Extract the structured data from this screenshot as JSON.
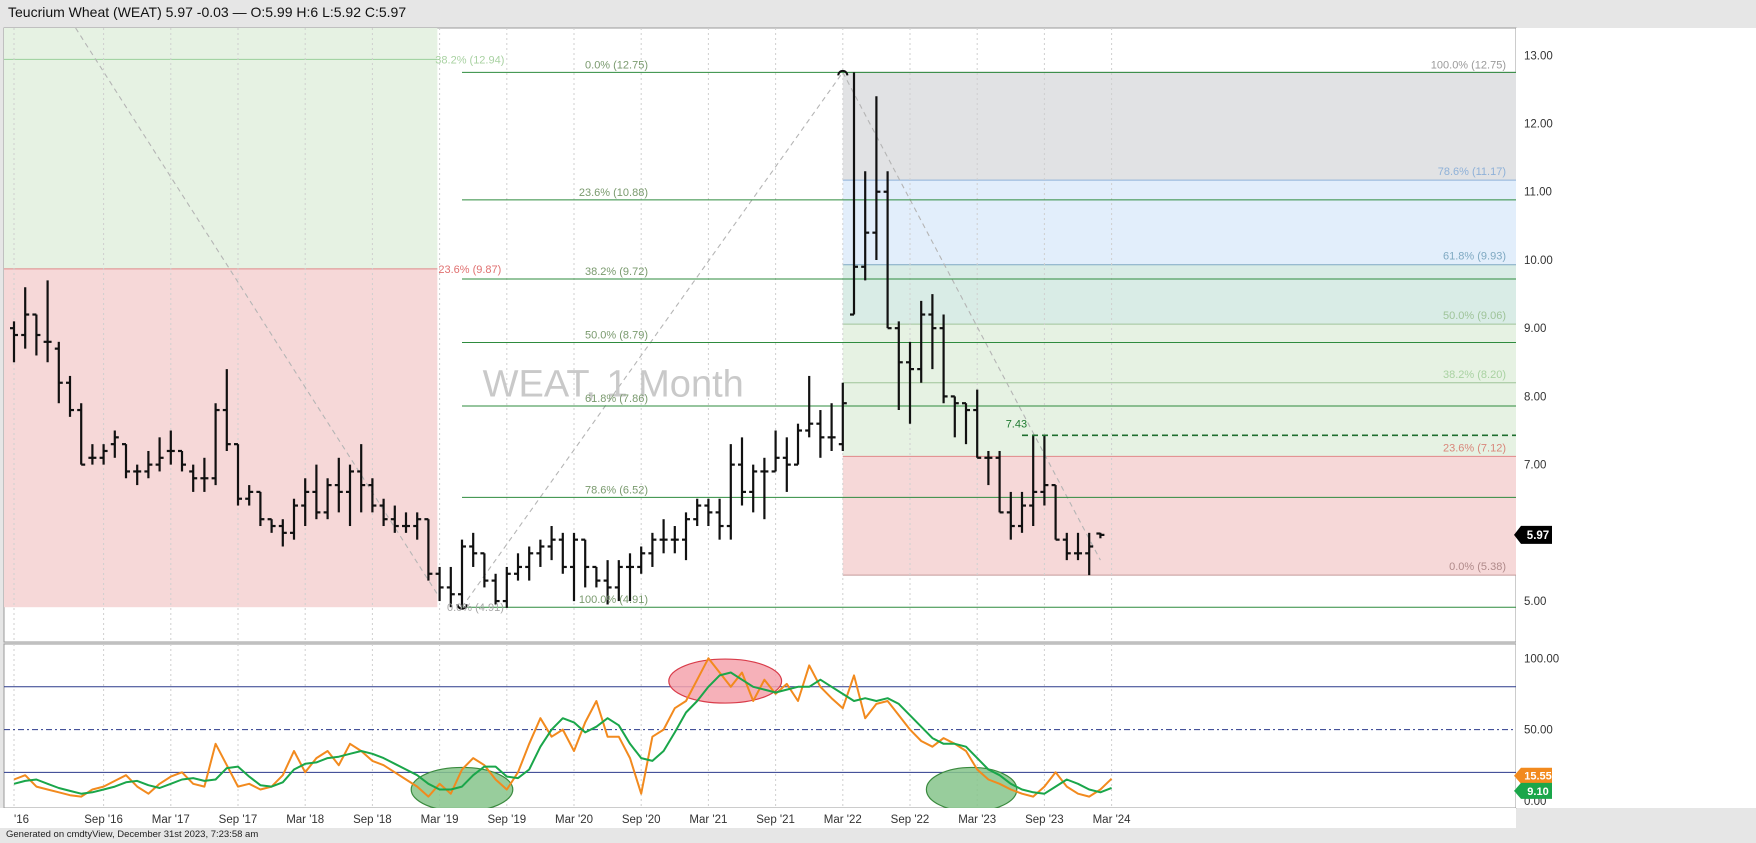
{
  "title": "Teucrium Wheat (WEAT) 5.97 -0.03 — O:5.99 H:6 L:5.92 C:5.97",
  "footer": "Generated on cmdtyView, December 31st 2023, 7:23:58 am",
  "watermark": "WEAT, 1 Month",
  "colors": {
    "bar": "#111111",
    "fib_line": "#2e8b3e",
    "osc_fast": "#f28a1e",
    "osc_slow": "#1aa64a",
    "zone_green": "#e6f2e3",
    "zone_red": "#f6d8d8",
    "zone_gray": "#e1e2e4",
    "zone_blue": "#e2eefb"
  },
  "chart_data": [
    {
      "type": "ohlc-bar",
      "interval": "1 Month",
      "symbol": "WEAT",
      "y_axis": {
        "ylim": [
          4.4,
          13.4
        ],
        "ticks": [
          {
            "v": 13,
            "label": "13.00"
          },
          {
            "v": 12,
            "label": "12.00"
          },
          {
            "v": 11,
            "label": "11.00"
          },
          {
            "v": 10,
            "label": "10.00"
          },
          {
            "v": 9,
            "label": "9.00"
          },
          {
            "v": 8,
            "label": "8.00"
          },
          {
            "v": 7,
            "label": "7.00"
          },
          {
            "v": 6,
            "label": "6.00"
          },
          {
            "v": 5,
            "label": "5.00"
          }
        ]
      },
      "x_axis": {
        "ticks": [
          {
            "i": 0,
            "label": "'16"
          },
          {
            "i": 8,
            "label": "Sep '16"
          },
          {
            "i": 14,
            "label": "Mar '17"
          },
          {
            "i": 20,
            "label": "Sep '17"
          },
          {
            "i": 26,
            "label": "Mar '18"
          },
          {
            "i": 32,
            "label": "Sep '18"
          },
          {
            "i": 38,
            "label": "Mar '19"
          },
          {
            "i": 44,
            "label": "Sep '19"
          },
          {
            "i": 50,
            "label": "Mar '20"
          },
          {
            "i": 56,
            "label": "Sep '20"
          },
          {
            "i": 62,
            "label": "Mar '21"
          },
          {
            "i": 68,
            "label": "Sep '21"
          },
          {
            "i": 74,
            "label": "Mar '22"
          },
          {
            "i": 80,
            "label": "Sep '22"
          },
          {
            "i": 86,
            "label": "Mar '23"
          },
          {
            "i": 92,
            "label": "Sep '23"
          },
          {
            "i": 98,
            "label": "Mar '24"
          }
        ]
      },
      "last_price": {
        "value": 5.97,
        "label": "5.97"
      },
      "bars": [
        [
          9.0,
          9.1,
          8.5,
          8.9
        ],
        [
          8.9,
          9.6,
          8.7,
          9.2
        ],
        [
          9.2,
          9.2,
          8.6,
          8.9
        ],
        [
          8.8,
          9.7,
          8.5,
          8.8
        ],
        [
          8.7,
          8.8,
          7.9,
          8.2
        ],
        [
          8.2,
          8.3,
          7.7,
          7.8
        ],
        [
          7.8,
          7.9,
          7.0,
          7.0
        ],
        [
          7.1,
          7.3,
          7.0,
          7.1
        ],
        [
          7.1,
          7.3,
          7.0,
          7.2
        ],
        [
          7.3,
          7.5,
          7.1,
          7.4
        ],
        [
          7.3,
          7.3,
          6.8,
          6.9
        ],
        [
          6.9,
          7.0,
          6.7,
          6.9
        ],
        [
          6.9,
          7.2,
          6.8,
          7.0
        ],
        [
          7.0,
          7.4,
          6.9,
          7.1
        ],
        [
          7.2,
          7.5,
          7.0,
          7.2
        ],
        [
          7.2,
          7.2,
          6.9,
          7.0
        ],
        [
          6.9,
          7.0,
          6.6,
          6.8
        ],
        [
          6.8,
          7.1,
          6.6,
          6.8
        ],
        [
          6.8,
          7.9,
          6.7,
          7.8
        ],
        [
          7.8,
          8.4,
          7.2,
          7.3
        ],
        [
          7.3,
          7.3,
          6.4,
          6.5
        ],
        [
          6.5,
          6.7,
          6.4,
          6.6
        ],
        [
          6.6,
          6.6,
          6.1,
          6.2
        ],
        [
          6.2,
          6.2,
          6.0,
          6.1
        ],
        [
          6.1,
          6.2,
          5.8,
          6.0
        ],
        [
          6.0,
          6.5,
          5.9,
          6.4
        ],
        [
          6.4,
          6.8,
          6.1,
          6.6
        ],
        [
          6.6,
          7.0,
          6.2,
          6.3
        ],
        [
          6.3,
          6.8,
          6.2,
          6.7
        ],
        [
          6.7,
          7.1,
          6.3,
          6.6
        ],
        [
          6.6,
          7.0,
          6.1,
          6.9
        ],
        [
          6.9,
          7.3,
          6.3,
          6.7
        ],
        [
          6.7,
          6.8,
          6.3,
          6.4
        ],
        [
          6.4,
          6.5,
          6.1,
          6.2
        ],
        [
          6.2,
          6.4,
          6.0,
          6.1
        ],
        [
          6.1,
          6.3,
          6.0,
          6.1
        ],
        [
          6.1,
          6.3,
          5.9,
          6.2
        ],
        [
          6.2,
          6.2,
          5.3,
          5.4
        ],
        [
          5.4,
          5.5,
          5.0,
          5.2
        ],
        [
          5.2,
          5.5,
          4.91,
          5.1
        ],
        [
          5.1,
          5.9,
          4.91,
          5.8
        ],
        [
          5.8,
          6.0,
          5.5,
          5.7
        ],
        [
          5.7,
          5.7,
          5.2,
          5.3
        ],
        [
          5.3,
          5.4,
          4.95,
          5.0
        ],
        [
          5.0,
          5.5,
          4.9,
          5.4
        ],
        [
          5.4,
          5.7,
          5.3,
          5.5
        ],
        [
          5.5,
          5.8,
          5.3,
          5.7
        ],
        [
          5.7,
          5.9,
          5.5,
          5.8
        ],
        [
          5.8,
          6.1,
          5.6,
          5.9
        ],
        [
          5.9,
          6.0,
          5.4,
          5.5
        ],
        [
          5.5,
          6.0,
          5.0,
          5.9
        ],
        [
          5.9,
          5.9,
          5.2,
          5.5
        ],
        [
          5.5,
          5.5,
          5.2,
          5.3
        ],
        [
          5.3,
          5.6,
          4.95,
          5.2
        ],
        [
          5.2,
          5.6,
          5.0,
          5.5
        ],
        [
          5.5,
          5.7,
          5.0,
          5.5
        ],
        [
          5.5,
          5.8,
          5.4,
          5.7
        ],
        [
          5.7,
          6.0,
          5.5,
          5.9
        ],
        [
          5.9,
          6.2,
          5.7,
          5.9
        ],
        [
          5.9,
          6.1,
          5.7,
          5.9
        ],
        [
          5.9,
          6.3,
          5.6,
          6.2
        ],
        [
          6.2,
          6.5,
          6.1,
          6.4
        ],
        [
          6.4,
          6.5,
          6.1,
          6.3
        ],
        [
          6.3,
          6.5,
          5.9,
          6.1
        ],
        [
          6.1,
          7.3,
          5.9,
          7.0
        ],
        [
          7.0,
          7.4,
          6.4,
          6.6
        ],
        [
          6.6,
          7.0,
          6.3,
          6.9
        ],
        [
          6.9,
          7.1,
          6.2,
          6.9
        ],
        [
          6.9,
          7.5,
          6.9,
          7.1
        ],
        [
          7.1,
          7.4,
          6.6,
          7.0
        ],
        [
          7.0,
          7.6,
          7.0,
          7.5
        ],
        [
          7.5,
          8.3,
          7.4,
          7.6
        ],
        [
          7.6,
          7.8,
          7.1,
          7.4
        ],
        [
          7.4,
          7.9,
          7.2,
          7.4
        ],
        [
          7.3,
          8.2,
          7.2,
          7.9
        ],
        [
          9.2,
          12.75,
          9.2,
          9.9
        ],
        [
          9.9,
          11.3,
          9.7,
          10.4
        ],
        [
          10.4,
          12.4,
          10.0,
          11.0
        ],
        [
          11.0,
          11.3,
          9.0,
          9.0
        ],
        [
          9.0,
          9.1,
          7.8,
          8.5
        ],
        [
          8.5,
          8.8,
          7.6,
          8.4
        ],
        [
          8.4,
          9.4,
          8.2,
          9.2
        ],
        [
          9.2,
          9.5,
          8.4,
          9.0
        ],
        [
          9.0,
          9.2,
          7.9,
          8.0
        ],
        [
          8.0,
          8.0,
          7.4,
          7.9
        ],
        [
          7.9,
          7.9,
          7.3,
          7.8
        ],
        [
          7.8,
          8.1,
          7.1,
          7.1
        ],
        [
          7.1,
          7.2,
          6.7,
          7.1
        ],
        [
          7.1,
          7.2,
          6.3,
          6.3
        ],
        [
          6.3,
          6.6,
          5.9,
          6.1
        ],
        [
          6.1,
          6.6,
          6.0,
          6.4
        ],
        [
          6.4,
          7.43,
          6.1,
          6.6
        ],
        [
          6.6,
          7.43,
          6.4,
          6.7
        ],
        [
          6.7,
          6.7,
          5.9,
          5.9
        ],
        [
          5.9,
          6.0,
          5.6,
          5.7
        ],
        [
          5.7,
          6.0,
          5.6,
          5.7
        ],
        [
          5.7,
          6.0,
          5.38,
          5.8
        ],
        [
          5.99,
          6.0,
          5.92,
          5.97
        ]
      ],
      "fib_left": {
        "levels": [
          {
            "v": 12.75,
            "label": "0.0% (12.75)"
          },
          {
            "v": 10.88,
            "label": "23.6% (10.88)"
          },
          {
            "v": 9.72,
            "label": "38.2% (9.72)"
          },
          {
            "v": 8.79,
            "label": "50.0% (8.79)"
          },
          {
            "v": 7.86,
            "label": "61.8% (7.86)"
          },
          {
            "v": 6.52,
            "label": "78.6% (6.52)"
          },
          {
            "v": 4.91,
            "label": "100.0% (4.91)"
          }
        ],
        "extra": [
          {
            "v": 12.94,
            "label": "38.2% (12.94)"
          },
          {
            "v": 9.87,
            "label": "23.6% (9.87)"
          },
          {
            "v": 4.91,
            "label": "0.0% (4.91)"
          }
        ]
      },
      "fib_right": {
        "levels": [
          {
            "v": 12.75,
            "label": "100.0% (12.75)"
          },
          {
            "v": 11.17,
            "label": "78.6% (11.17)"
          },
          {
            "v": 9.93,
            "label": "61.8% (9.93)"
          },
          {
            "v": 9.06,
            "label": "50.0% (9.06)"
          },
          {
            "v": 8.2,
            "label": "38.2% (8.20)"
          },
          {
            "v": 7.12,
            "label": "23.6% (7.12)"
          },
          {
            "v": 5.38,
            "label": "0.0% (5.38)"
          }
        ]
      },
      "annotation": {
        "v": 7.43,
        "label": "7.43"
      }
    },
    {
      "type": "line",
      "name": "oscillator",
      "ylim": [
        -5,
        110
      ],
      "ticks": [
        {
          "v": 100,
          "label": "100.00"
        },
        {
          "v": 50,
          "label": "50.00"
        },
        {
          "v": 0,
          "label": "0.00"
        }
      ],
      "levels": [
        80,
        50,
        20
      ],
      "last_values": {
        "fast": {
          "v": 15.55,
          "label": "15.55"
        },
        "slow": {
          "v": 9.1,
          "label": "9.10"
        }
      },
      "series": [
        {
          "key": "fast",
          "values": [
            15,
            18,
            10,
            8,
            6,
            4,
            3,
            8,
            10,
            14,
            18,
            10,
            5,
            12,
            17,
            20,
            12,
            10,
            40,
            25,
            10,
            12,
            8,
            10,
            18,
            35,
            20,
            30,
            35,
            25,
            40,
            35,
            28,
            25,
            20,
            15,
            10,
            3,
            12,
            5,
            22,
            30,
            25,
            15,
            8,
            20,
            40,
            58,
            45,
            50,
            35,
            55,
            70,
            45,
            45,
            30,
            5,
            45,
            50,
            65,
            70,
            85,
            100,
            90,
            80,
            90,
            70,
            85,
            75,
            82,
            70,
            95,
            80,
            72,
            65,
            88,
            58,
            68,
            70,
            60,
            50,
            42,
            38,
            44,
            40,
            35,
            22,
            15,
            12,
            8,
            5,
            3,
            10,
            20,
            10,
            5,
            3,
            8,
            15.55
          ]
        },
        {
          "key": "slow",
          "values": [
            12,
            14,
            15,
            12,
            9,
            7,
            5,
            6,
            8,
            10,
            13,
            14,
            11,
            9,
            12,
            15,
            16,
            14,
            15,
            23,
            24,
            17,
            11,
            10,
            13,
            22,
            26,
            27,
            30,
            31,
            33,
            35,
            33,
            30,
            26,
            22,
            18,
            12,
            8,
            8,
            10,
            18,
            24,
            24,
            17,
            16,
            22,
            38,
            50,
            58,
            55,
            48,
            52,
            58,
            53,
            40,
            30,
            28,
            35,
            48,
            62,
            70,
            80,
            88,
            90,
            85,
            80,
            78,
            76,
            78,
            80,
            80,
            85,
            80,
            75,
            70,
            72,
            70,
            72,
            68,
            60,
            52,
            44,
            40,
            40,
            38,
            30,
            22,
            18,
            12,
            8,
            6,
            5,
            10,
            15,
            12,
            8,
            6,
            9.1
          ]
        }
      ],
      "highlights": [
        {
          "type": "oversold",
          "start": 36,
          "end": 44
        },
        {
          "type": "overbought",
          "start": 59,
          "end": 68
        },
        {
          "type": "oversold",
          "start": 82,
          "end": 89
        }
      ]
    }
  ]
}
